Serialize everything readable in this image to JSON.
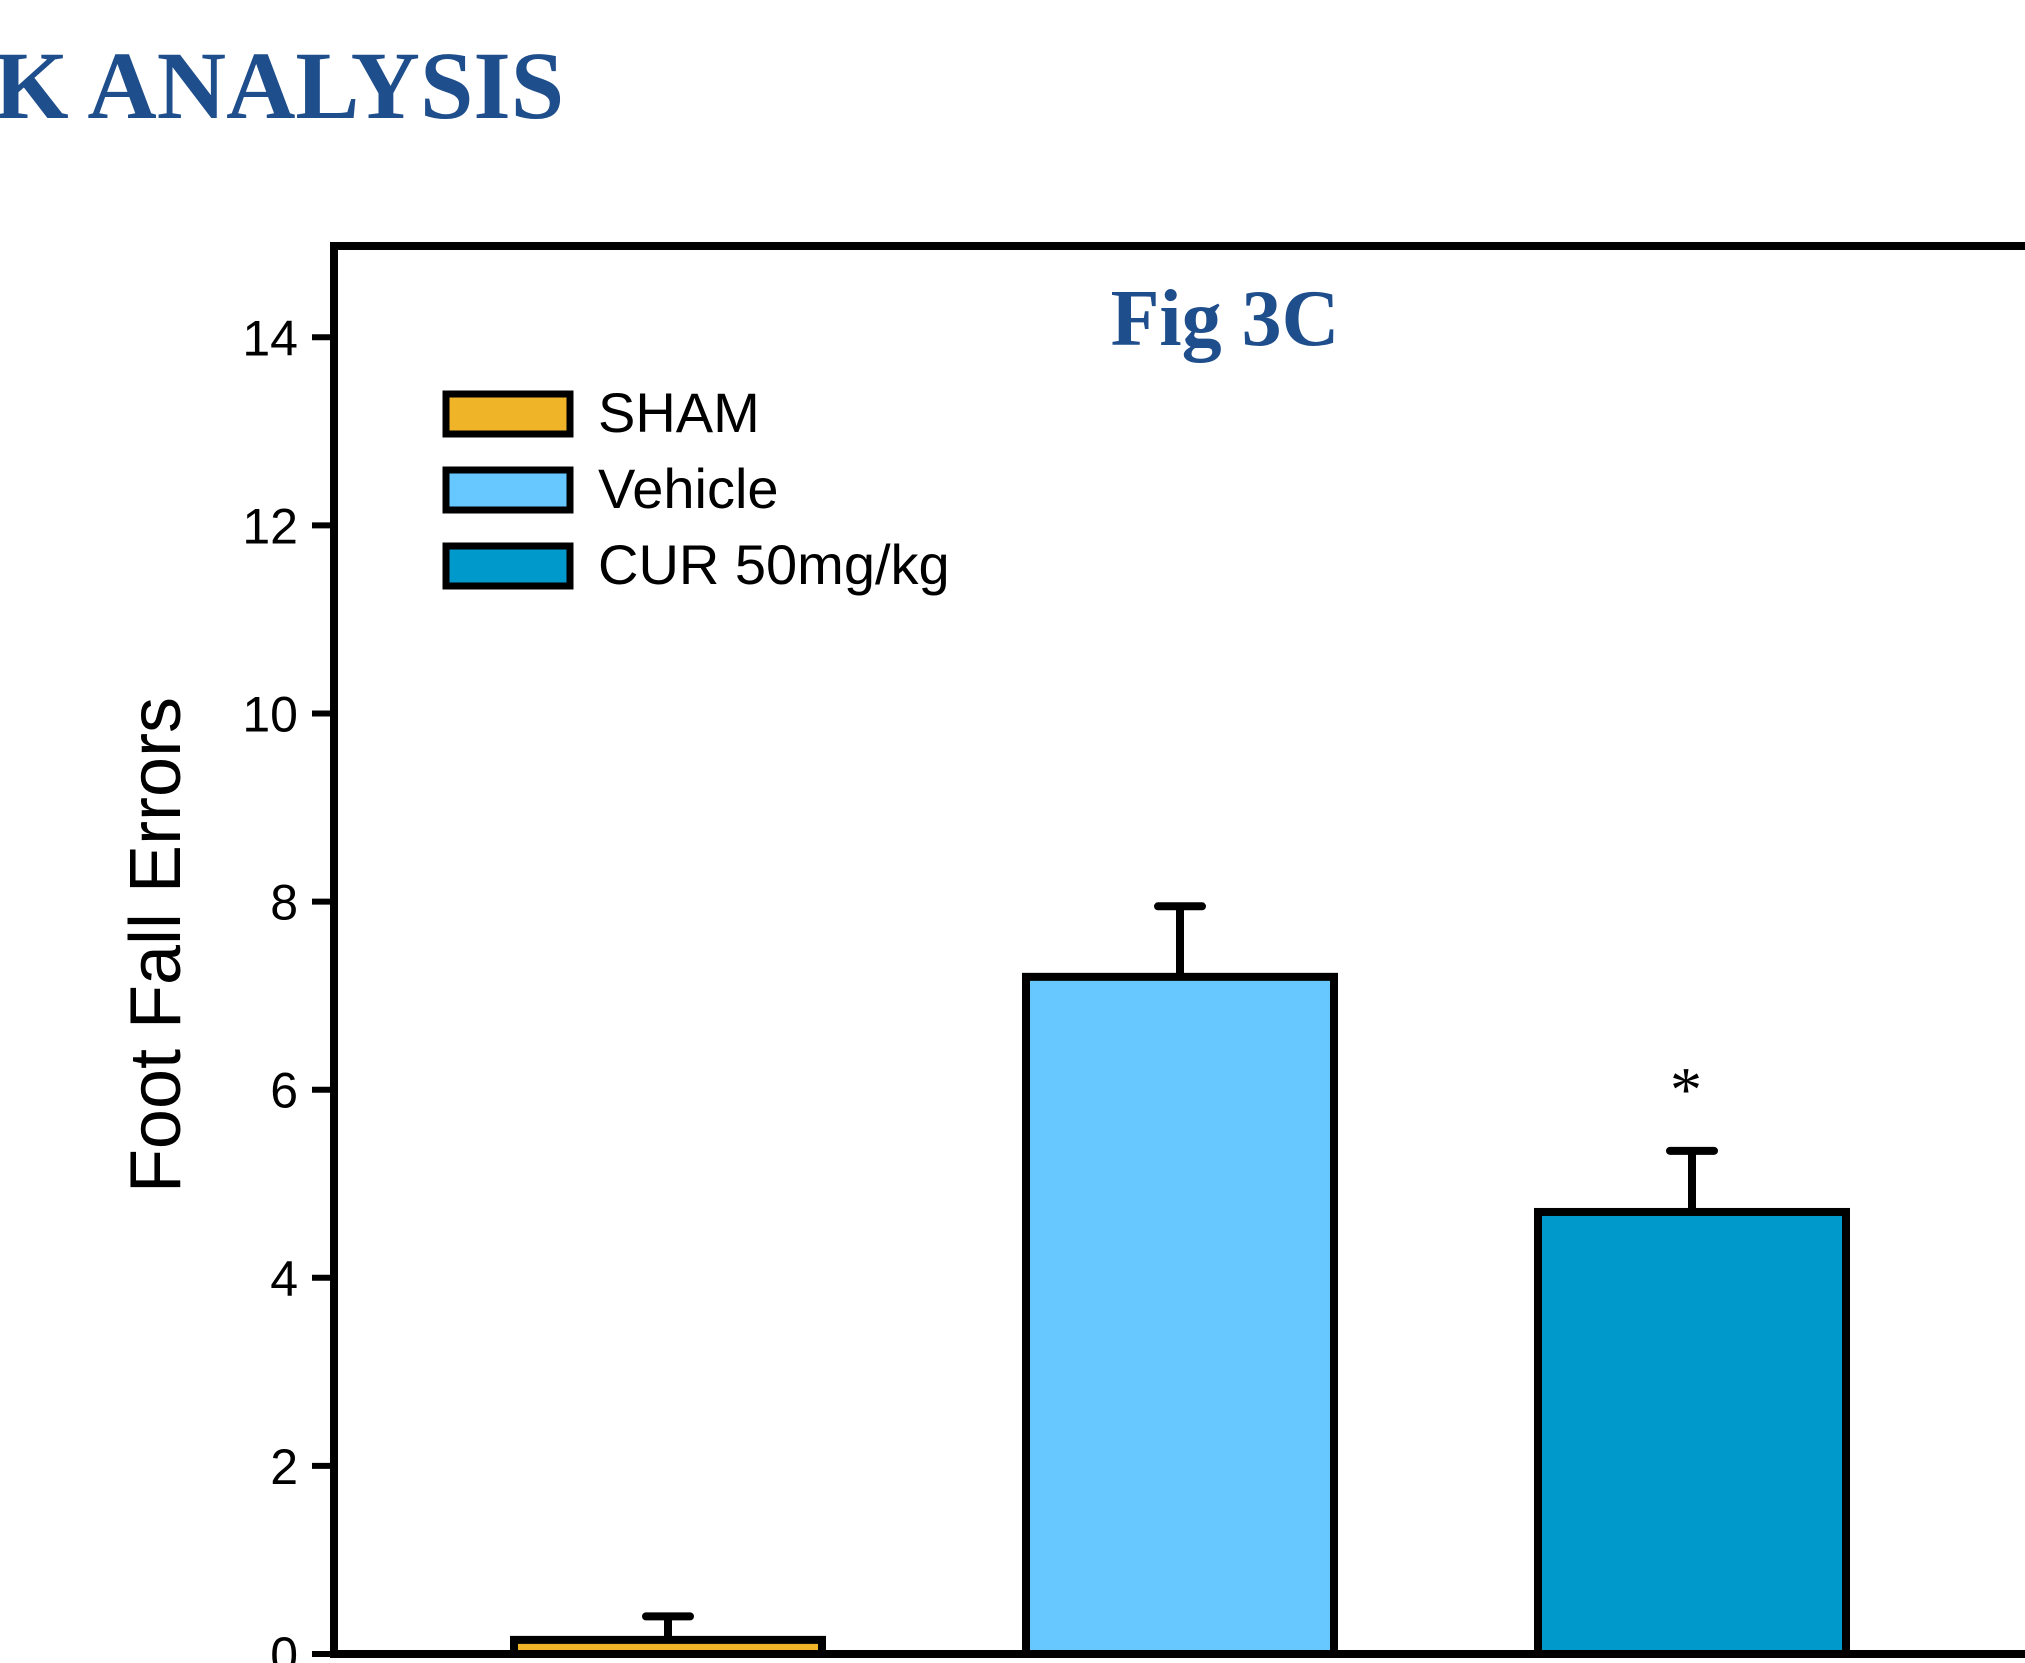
{
  "slide": {
    "title": "LK ANALYSIS",
    "title_color": "#1f4e8c"
  },
  "chart_data": {
    "type": "bar",
    "title": "Fig 3C",
    "ylabel": "Foot Fall Errors",
    "xlabel": "",
    "ylim": [
      0,
      15
    ],
    "yticks": [
      0,
      2,
      4,
      6,
      8,
      10,
      12,
      14
    ],
    "grid": false,
    "legend_position": "top-left",
    "series": [
      {
        "name": "SHAM",
        "value": 0.15,
        "error": 0.25,
        "color": "#f0b429"
      },
      {
        "name": "Vehicle",
        "value": 7.2,
        "error": 0.75,
        "color": "#66c8ff"
      },
      {
        "name": "CUR 50mg/kg",
        "value": 4.7,
        "error": 0.65,
        "color": "#0099cc"
      }
    ],
    "annotations": [
      {
        "series": "CUR 50mg/kg",
        "text": "*"
      }
    ]
  }
}
